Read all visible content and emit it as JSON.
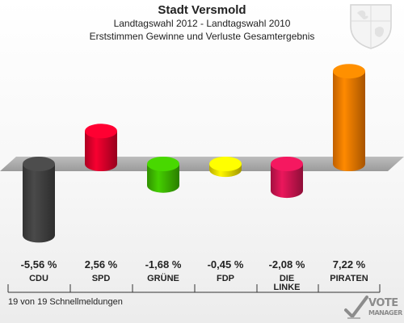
{
  "header": {
    "title": "Stadt Versmold",
    "subtitle": "Landtagswahl 2012 - Landtagswahl 2010",
    "subtitle2": "Erststimmen Gewinne und Verluste Gesamtergebnis"
  },
  "footer": {
    "text": "19 von 19 Schnellmeldungen"
  },
  "logo": {
    "line1": "VOTE",
    "line2": "MANAGER"
  },
  "chart_data": {
    "type": "bar",
    "categories": [
      "CDU",
      "SPD",
      "GRÜNE",
      "FDP",
      "DIE LINKE",
      "PIRATEN"
    ],
    "values": [
      -5.56,
      2.56,
      -1.68,
      -0.45,
      -2.08,
      7.22
    ],
    "value_labels": [
      "-5,56 %",
      "2,56 %",
      "-1,68 %",
      "-0,45 %",
      "-2,08 %",
      "7,22 %"
    ],
    "colors": [
      "#404040",
      "#d8002a",
      "#3cb400",
      "#e8d800",
      "#cc1450",
      "#f07800"
    ],
    "title": "Stadt Versmold",
    "xlabel": "",
    "ylabel": "",
    "grid": false
  }
}
